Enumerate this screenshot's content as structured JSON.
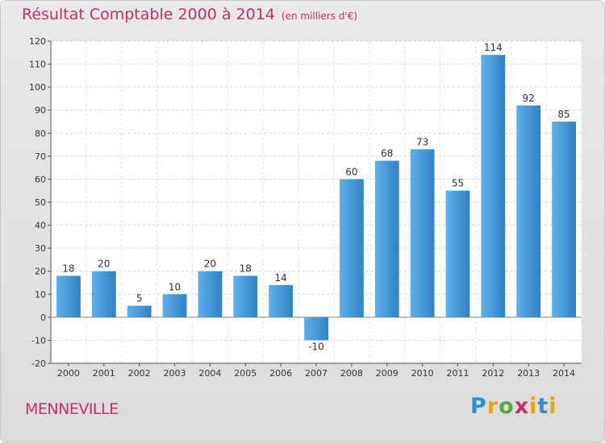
{
  "chart_data": {
    "type": "bar",
    "title": "Résultat Comptable 2000 à 2014",
    "subtitle": "(en milliers d'€)",
    "categories": [
      "2000",
      "2001",
      "2002",
      "2003",
      "2004",
      "2005",
      "2006",
      "2007",
      "2008",
      "2009",
      "2010",
      "2011",
      "2012",
      "2013",
      "2014"
    ],
    "values": [
      18,
      20,
      5,
      10,
      20,
      18,
      14,
      -10,
      60,
      68,
      73,
      55,
      114,
      92,
      85
    ],
    "ylim": [
      -20,
      120
    ],
    "yticks": [
      -20,
      -10,
      0,
      10,
      20,
      30,
      40,
      50,
      60,
      70,
      80,
      90,
      100,
      110,
      120
    ],
    "grid": true,
    "xlabel": "",
    "ylabel": "",
    "bar_color_light": "#5fb0ea",
    "bar_color_dark": "#2f82c4"
  },
  "commune_label": "MENNEVILLE",
  "logo": {
    "p": "P",
    "r": "r",
    "o": "o",
    "x": "x",
    "i1": "i",
    "t": "t",
    "i2": "i"
  }
}
